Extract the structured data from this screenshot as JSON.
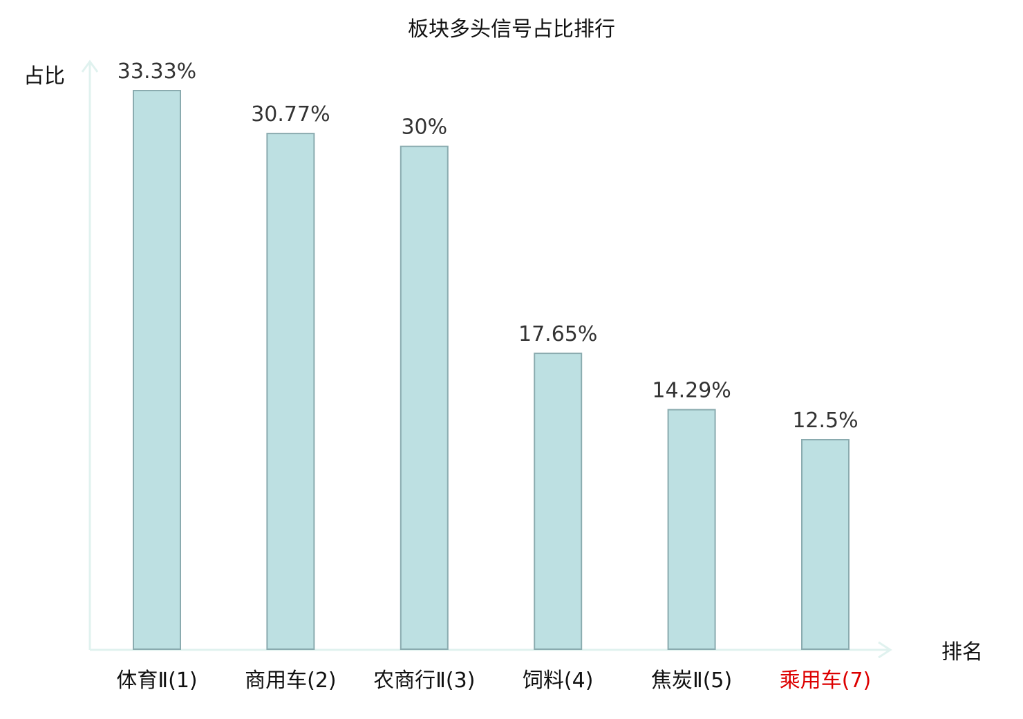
{
  "chart_data": {
    "type": "bar",
    "title": "板块多头信号占比排行",
    "xlabel": "排名",
    "ylabel": "占比",
    "categories": [
      "体育Ⅱ(1)",
      "商用车(2)",
      "农商行Ⅱ(3)",
      "饲料(4)",
      "焦炭Ⅱ(5)",
      "乘用车(7)"
    ],
    "values": [
      33.33,
      30.77,
      30,
      17.65,
      14.29,
      12.5
    ],
    "value_labels": [
      "33.33%",
      "30.77%",
      "30%",
      "17.65%",
      "14.29%",
      "12.5%"
    ],
    "ylim": [
      0,
      33.33
    ],
    "grid": false,
    "legend": "none",
    "highlight_index": 5
  },
  "colors": {
    "bar_fill": "#bde0e2",
    "bar_stroke": "#8aabaf",
    "axis": "#e0f2ef",
    "text": "#111111",
    "data_label": "#333333",
    "highlight_label": "#dd0000"
  }
}
